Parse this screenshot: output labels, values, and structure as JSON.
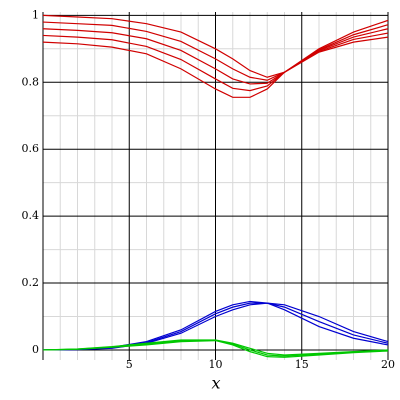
{
  "chart_data": {
    "type": "line",
    "x_label": "x",
    "x": [
      0,
      2,
      4,
      6,
      8,
      10,
      11,
      12,
      13,
      14,
      16,
      18,
      20
    ],
    "series": [
      {
        "color": "#d00000",
        "values": [
          1.0,
          0.995,
          0.99,
          0.975,
          0.95,
          0.9,
          0.87,
          0.835,
          0.815,
          0.83,
          0.9,
          0.95,
          0.985
        ]
      },
      {
        "color": "#d00000",
        "values": [
          0.98,
          0.975,
          0.97,
          0.952,
          0.922,
          0.87,
          0.84,
          0.815,
          0.806,
          0.83,
          0.897,
          0.942,
          0.972
        ]
      },
      {
        "color": "#d00000",
        "values": [
          0.96,
          0.955,
          0.948,
          0.93,
          0.895,
          0.84,
          0.81,
          0.795,
          0.797,
          0.83,
          0.895,
          0.935,
          0.96
        ]
      },
      {
        "color": "#d00000",
        "values": [
          0.94,
          0.935,
          0.927,
          0.907,
          0.868,
          0.81,
          0.782,
          0.775,
          0.789,
          0.83,
          0.892,
          0.928,
          0.947
        ]
      },
      {
        "color": "#d00000",
        "values": [
          0.92,
          0.915,
          0.905,
          0.885,
          0.84,
          0.78,
          0.755,
          0.755,
          0.78,
          0.83,
          0.89,
          0.92,
          0.935
        ]
      },
      {
        "color": "#0000d0",
        "values": [
          0,
          0.002,
          0.008,
          0.025,
          0.06,
          0.115,
          0.135,
          0.145,
          0.14,
          0.12,
          0.07,
          0.035,
          0.015
        ]
      },
      {
        "color": "#0000d0",
        "values": [
          0,
          0.0015,
          0.006,
          0.022,
          0.055,
          0.108,
          0.128,
          0.14,
          0.14,
          0.128,
          0.085,
          0.045,
          0.02
        ]
      },
      {
        "color": "#0000d0",
        "values": [
          0,
          0.001,
          0.005,
          0.02,
          0.05,
          0.1,
          0.12,
          0.135,
          0.14,
          0.135,
          0.1,
          0.055,
          0.025
        ]
      },
      {
        "color": "#00c800",
        "values": [
          0,
          0.003,
          0.01,
          0.02,
          0.03,
          0.03,
          0.02,
          0.005,
          -0.01,
          -0.015,
          -0.01,
          -0.005,
          0
        ]
      },
      {
        "color": "#00c800",
        "values": [
          0,
          0.0025,
          0.009,
          0.0175,
          0.0275,
          0.029,
          0.0175,
          0,
          -0.015,
          -0.0185,
          -0.0125,
          -0.0065,
          -0.0015
        ]
      },
      {
        "color": "#00c800",
        "values": [
          0,
          0.002,
          0.008,
          0.015,
          0.025,
          0.028,
          0.015,
          -0.005,
          -0.02,
          -0.022,
          -0.015,
          -0.008,
          -0.003
        ]
      }
    ],
    "xlim": [
      0,
      20
    ],
    "ylim": [
      -0.03,
      1.01
    ],
    "xticks": [
      5,
      10,
      15,
      20
    ],
    "yticks": [
      0,
      0.2,
      0.4,
      0.6,
      0.8,
      1
    ],
    "xminorticks": [
      1,
      2,
      3,
      4,
      6,
      7,
      8,
      9,
      11,
      12,
      13,
      14,
      16,
      17,
      18,
      19
    ],
    "yminorticks": [
      0.1,
      0.3,
      0.5,
      0.7,
      0.9
    ],
    "grid": true
  }
}
